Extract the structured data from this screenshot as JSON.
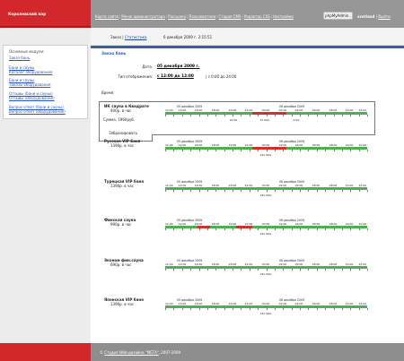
{
  "header": {
    "site_title": "Королевский пар",
    "nav": [
      "Карта сайта",
      "Меню администратора",
      "Рассылка",
      "Пользователи",
      "Старая CMS",
      "Редактор CSS",
      "Настройки"
    ],
    "pma_button": "phpMyAdmin..",
    "user": "svetland",
    "logout": "Выйти"
  },
  "breadcrumb": {
    "section": "Заказ",
    "separator": "|",
    "link": "Статистика",
    "datetime": "6 декабря 2009 г. 2:15:51"
  },
  "sidebar": {
    "title": "Основные модули:",
    "links": [
      "Заказ бань",
      "Бани и сауны",
      "Каталог оборудования",
      "Бани и сауны",
      "Заказы оборудования",
      "Отзывы (бани и сауны)",
      "Отзывы (оборудование)",
      "Вопрос-ответ (бани и сауны)",
      "Вопрос-ответ (оборудование)"
    ]
  },
  "page": {
    "title": "Заказ бань",
    "date_label": "Дата:",
    "date_value": "05 декабря 2009 г.",
    "mode_label": "Тип отображения:",
    "mode_value": "с 12:00 до 12:00",
    "mode_alt": "с 0:00 до 24:00",
    "time_label": "Время:"
  },
  "timeline": {
    "day1": "05 декабря 2009",
    "day2": "06 декабря 2009",
    "hours": [
      "12:00",
      "14:00",
      "16:00",
      "18:00",
      "20:00",
      "22:00",
      "00:00",
      "02:00",
      "04:00",
      "06:00",
      "08:00",
      "10:00",
      "12:00"
    ]
  },
  "saunas": [
    {
      "name": "ИК сауна в Квадрате",
      "price": "400р. в час",
      "sum": "Сумма: 1960руб.",
      "book": "Забронировать",
      "notes": [
        "22:00",
        "4ч:00м",
        "2:00"
      ]
    },
    {
      "name": "Русская VIP баня",
      "price": "1390р. в час",
      "notes": [
        "24ч:00м"
      ]
    },
    {
      "name": "Турецкая VIP баня",
      "price": "1390р. в час",
      "notes": [
        "24ч:00м"
      ]
    },
    {
      "name": "Финская сауна",
      "price": "990р. в час",
      "notes": [
        "24ч:00м"
      ]
    },
    {
      "name": "Эконом фин.сауна",
      "price": "690р. в час",
      "notes": [
        "24ч:00м"
      ]
    },
    {
      "name": "Японская VIP баня",
      "price": "1390р. в час",
      "notes": [
        "24ч:00м"
      ]
    }
  ],
  "footer": {
    "copy": "© ",
    "studio_link": "Студия Web-дизайна \"МЕТА\"",
    "years": ", 2007-2009"
  },
  "colors": {
    "brand_red": "#d2272b",
    "free_slot": "#4caf50",
    "busy_slot": "#d03030",
    "accent_blue": "#3c5fa3"
  }
}
